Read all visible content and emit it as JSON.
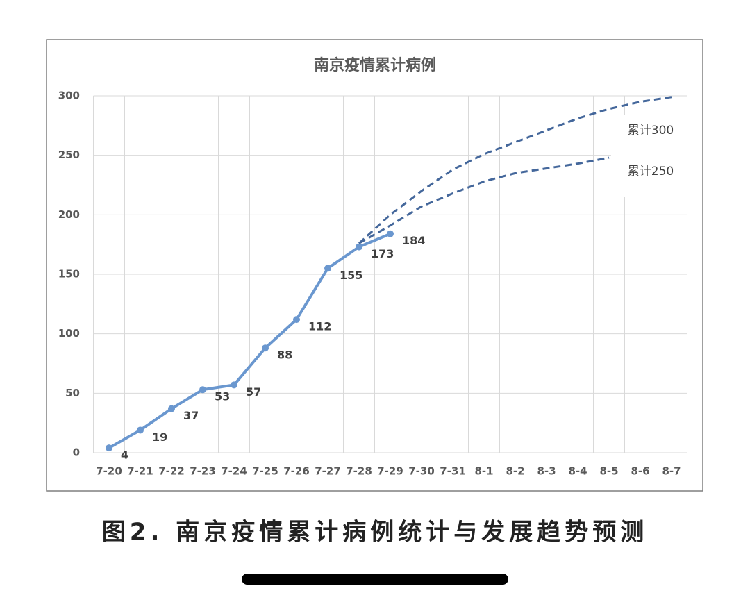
{
  "chart_data": {
    "type": "line",
    "title": "南京疫情累计病例",
    "categories": [
      "7-20",
      "7-21",
      "7-22",
      "7-23",
      "7-24",
      "7-25",
      "7-26",
      "7-27",
      "7-28",
      "7-29",
      "7-30",
      "7-31",
      "8-1",
      "8-2",
      "8-3",
      "8-4",
      "8-5",
      "8-6",
      "8-7"
    ],
    "series": [
      {
        "color": "#6a97cf",
        "style": "solid",
        "markers": true,
        "data_labels": true,
        "values": [
          4,
          19,
          37,
          53,
          57,
          88,
          112,
          155,
          173,
          184,
          null,
          null,
          null,
          null,
          null,
          null,
          null,
          null,
          null
        ]
      },
      {
        "name": "累计300",
        "color": "#44679b",
        "style": "dashed",
        "markers": false,
        "data_labels": false,
        "values": [
          null,
          null,
          null,
          null,
          null,
          null,
          null,
          null,
          176,
          200,
          220,
          238,
          251,
          261,
          271,
          281,
          289,
          295,
          299
        ]
      },
      {
        "name": "累计250",
        "color": "#44679b",
        "style": "dashed",
        "markers": false,
        "data_labels": false,
        "values": [
          null,
          null,
          null,
          null,
          null,
          null,
          null,
          null,
          176,
          191,
          207,
          218,
          228,
          235,
          239,
          243,
          248,
          null,
          null
        ]
      }
    ],
    "ylim": [
      0,
      300
    ],
    "yticks": [
      0,
      50,
      100,
      150,
      200,
      250,
      300
    ],
    "grid": true
  },
  "caption": "图2. 南京疫情累计病例统计与发展趋势预测"
}
